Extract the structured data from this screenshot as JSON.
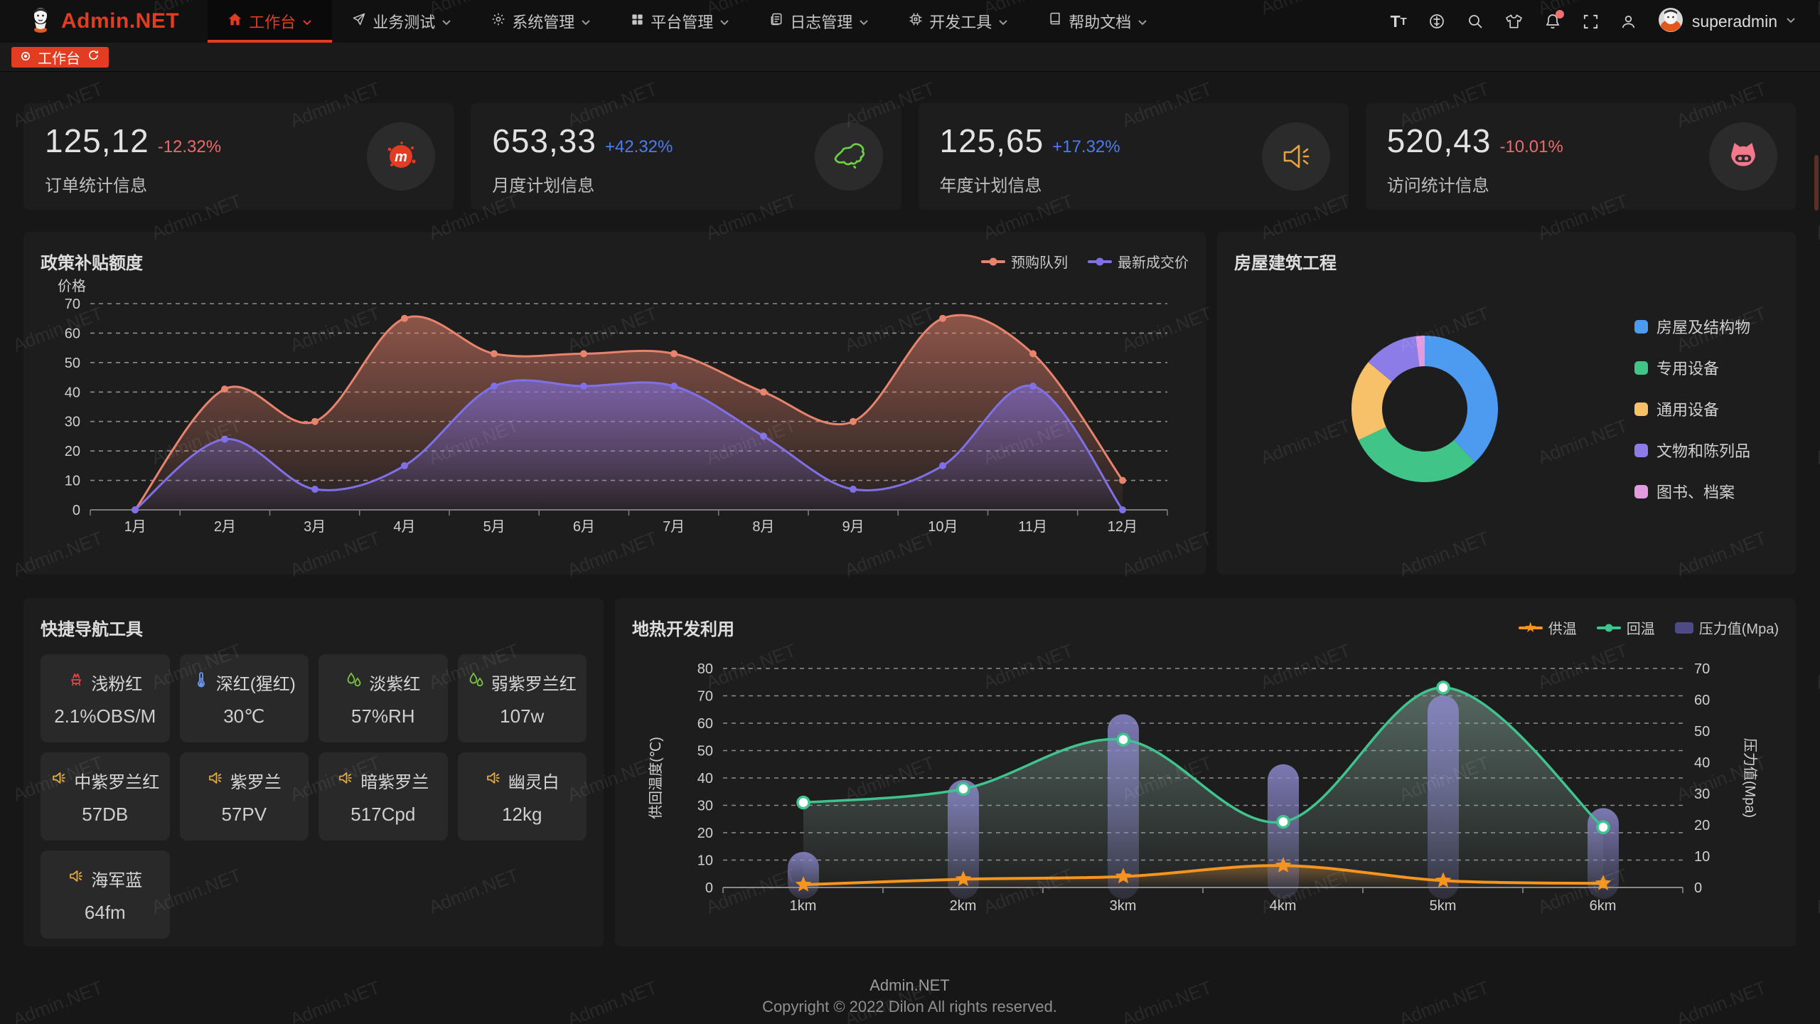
{
  "watermark": {
    "text": "Admin.NET"
  },
  "navbar": {
    "logo_text": "Admin.NET",
    "menus": [
      {
        "label": "工作台",
        "active": true
      },
      {
        "label": "业务测试",
        "active": false
      },
      {
        "label": "系统管理",
        "active": false
      },
      {
        "label": "平台管理",
        "active": false
      },
      {
        "label": "日志管理",
        "active": false
      },
      {
        "label": "开发工具",
        "active": false
      },
      {
        "label": "帮助文档",
        "active": false
      }
    ],
    "username": "superadmin"
  },
  "tabs": {
    "items": [
      {
        "label": "工作台",
        "active": true
      }
    ]
  },
  "stat_cards": [
    {
      "value": "125,12",
      "delta": "-12.32%",
      "delta_color": "#ef6a6a",
      "label": "订单统计信息",
      "icon": "meetup-splat"
    },
    {
      "value": "653,33",
      "delta": "+42.32%",
      "delta_color": "#4e7bee",
      "label": "月度计划信息",
      "icon": "china-map"
    },
    {
      "value": "125,65",
      "delta": "+17.32%",
      "delta_color": "#4e7bee",
      "label": "年度计划信息",
      "icon": "speaker"
    },
    {
      "value": "520,43",
      "delta": "-10.01%",
      "delta_color": "#ef6a6a",
      "label": "访问统计信息",
      "icon": "cat"
    }
  ],
  "chart_data": [
    {
      "id": "policy",
      "type": "area",
      "title": "政策补贴额度",
      "ylabel": "价格",
      "categories": [
        "1月",
        "2月",
        "3月",
        "4月",
        "5月",
        "6月",
        "7月",
        "8月",
        "9月",
        "10月",
        "11月",
        "12月"
      ],
      "ylim": [
        0,
        70
      ],
      "ytick_step": 10,
      "grid": "dashed",
      "legend_position": "top-right",
      "series": [
        {
          "name": "预购队列",
          "color": "#e8836d",
          "values": [
            0,
            41,
            30,
            65,
            53,
            53,
            53,
            40,
            30,
            65,
            53,
            10
          ]
        },
        {
          "name": "最新成交价",
          "color": "#7f70e6",
          "values": [
            0,
            24,
            7,
            15,
            42,
            42,
            42,
            25,
            7,
            15,
            42,
            0
          ]
        }
      ]
    },
    {
      "id": "housing",
      "type": "pie",
      "title": "房屋建筑工程",
      "legend_position": "right",
      "slices": [
        {
          "label": "房屋及结构物",
          "value": 38,
          "color": "#4d9bf0"
        },
        {
          "label": "专用设备",
          "value": 30,
          "color": "#41c487"
        },
        {
          "label": "通用设备",
          "value": 18,
          "color": "#f6c168"
        },
        {
          "label": "文物和陈列品",
          "value": 12,
          "color": "#8b7ce8"
        },
        {
          "label": "图书、档案",
          "value": 2,
          "color": "#e39be0"
        }
      ]
    },
    {
      "id": "geothermal",
      "type": "line+bar",
      "title": "地热开发利用",
      "categories": [
        "1km",
        "2km",
        "3km",
        "4km",
        "5km",
        "6km"
      ],
      "ylabel_left": "供回温度(℃)",
      "ylabel_right": "压力值(Mpa)",
      "ylim_left": [
        0,
        80
      ],
      "ylim_right": [
        0,
        70
      ],
      "ytick_step": 10,
      "grid": "dashed",
      "series": [
        {
          "name": "供温",
          "type": "line",
          "marker": "star",
          "axis": "left",
          "color": "#f5941e",
          "values": [
            1,
            3,
            4,
            8,
            2.5,
            1.5
          ]
        },
        {
          "name": "回温",
          "type": "line",
          "marker": "circle",
          "axis": "left",
          "color": "#3fc48e",
          "values": [
            31,
            36,
            54,
            24,
            73,
            22
          ]
        },
        {
          "name": "压力值(Mpa)",
          "type": "bar",
          "axis": "right",
          "color": "#6c69b8",
          "values": [
            10,
            33,
            54,
            38,
            60,
            24
          ]
        }
      ]
    }
  ],
  "quick_nav": {
    "title": "快捷导航工具",
    "items": [
      {
        "label": "浅粉红",
        "value": "2.1%OBS/M",
        "icon": "brazier"
      },
      {
        "label": "深红(猩红)",
        "value": "30℃",
        "icon": "thermometer"
      },
      {
        "label": "淡紫红",
        "value": "57%RH",
        "icon": "humidity"
      },
      {
        "label": "弱紫罗兰红",
        "value": "107w",
        "icon": "humidity"
      },
      {
        "label": "中紫罗兰红",
        "value": "57DB",
        "icon": "speaker"
      },
      {
        "label": "紫罗兰",
        "value": "57PV",
        "icon": "speaker"
      },
      {
        "label": "暗紫罗兰",
        "value": "517Cpd",
        "icon": "speaker"
      },
      {
        "label": "幽灵白",
        "value": "12kg",
        "icon": "speaker"
      },
      {
        "label": "海军蓝",
        "value": "64fm",
        "icon": "speaker"
      }
    ]
  },
  "footer": {
    "line1": "Admin.NET",
    "line2": "Copyright © 2022 Dilon All rights reserved."
  }
}
